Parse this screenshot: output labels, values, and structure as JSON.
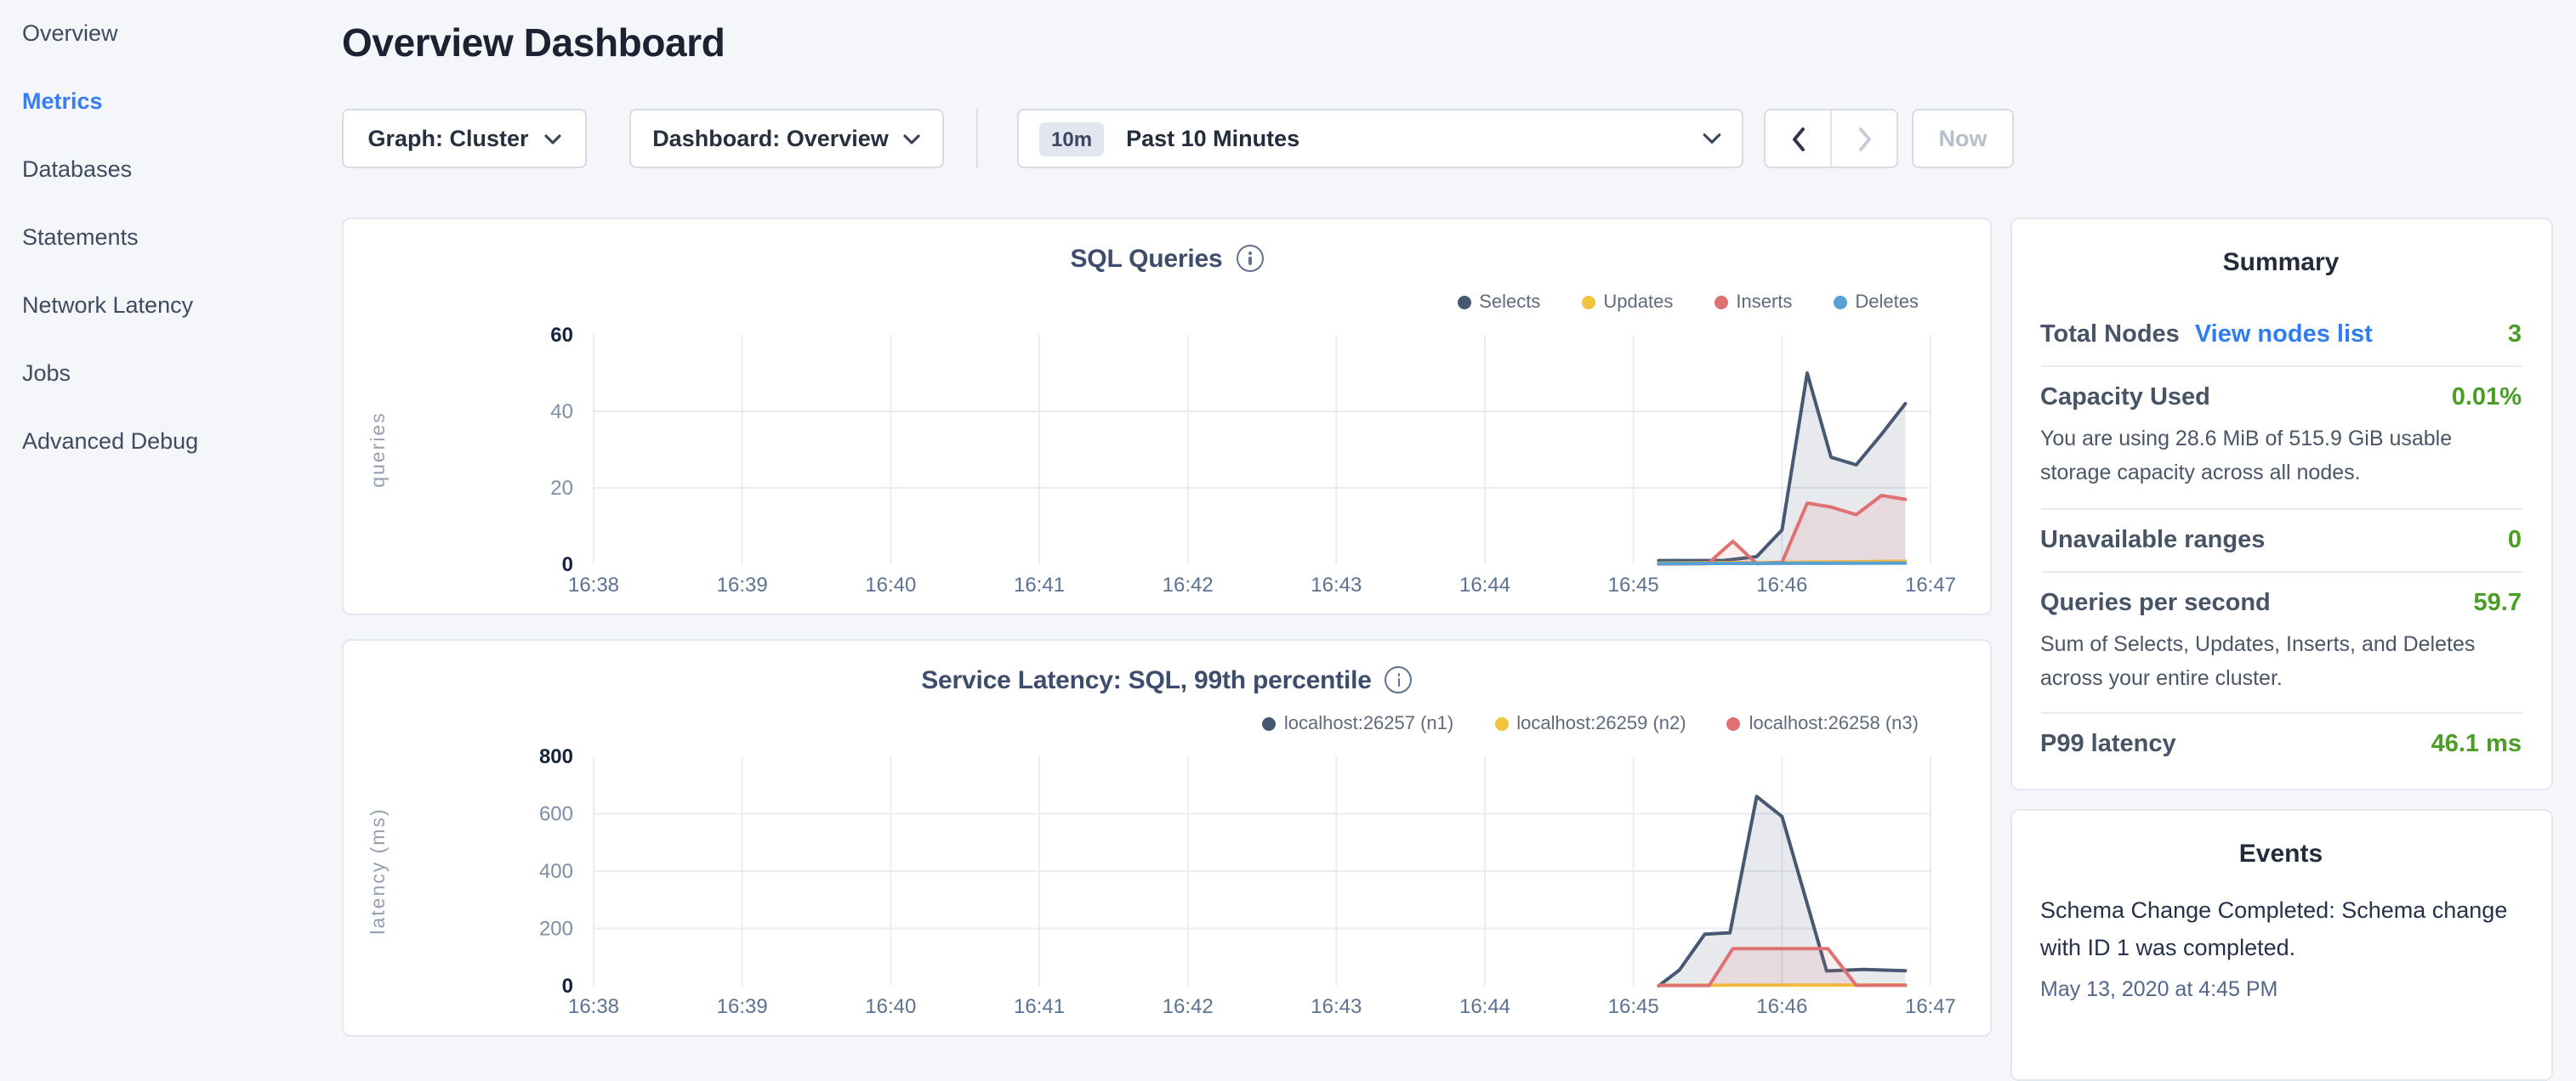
{
  "sidebar": {
    "items": [
      {
        "label": "Overview",
        "active": false
      },
      {
        "label": "Metrics",
        "active": true
      },
      {
        "label": "Databases",
        "active": false
      },
      {
        "label": "Statements",
        "active": false
      },
      {
        "label": "Network Latency",
        "active": false
      },
      {
        "label": "Jobs",
        "active": false
      },
      {
        "label": "Advanced Debug",
        "active": false
      }
    ]
  },
  "header": {
    "title": "Overview Dashboard"
  },
  "controls": {
    "graph_dropdown": {
      "label": "Graph: Cluster"
    },
    "dashboard_dropdown": {
      "label": "Dashboard: Overview"
    },
    "time_picker": {
      "badge": "10m",
      "label": "Past 10 Minutes"
    },
    "now_button": "Now"
  },
  "colors": {
    "accent_blue": "#377df6",
    "link_blue": "#2f7df2",
    "value_green": "#4a9e26",
    "series_navy": "#475872",
    "series_yellow": "#f2c33c",
    "series_red": "#e07172",
    "series_blue": "#57a0d4"
  },
  "chart_data": [
    {
      "type": "area",
      "title": "SQL Queries",
      "ylabel": "queries",
      "xlabel": "",
      "x_tick_labels": [
        "16:38",
        "16:39",
        "16:40",
        "16:41",
        "16:42",
        "16:43",
        "16:44",
        "16:45",
        "16:46",
        "16:47"
      ],
      "x_range_minutes": [
        0,
        9
      ],
      "ylim": [
        0,
        60
      ],
      "y_ticks": [
        0,
        20,
        40,
        60
      ],
      "grid": true,
      "legend_position": "top-right",
      "series": [
        {
          "name": "Selects",
          "color": "#475872",
          "fill_opacity": 0.13,
          "points": [
            [
              7.17,
              1
            ],
            [
              7.6,
              1
            ],
            [
              7.83,
              2
            ],
            [
              8.0,
              9
            ],
            [
              8.17,
              50
            ],
            [
              8.33,
              28
            ],
            [
              8.5,
              26
            ],
            [
              8.67,
              34
            ],
            [
              8.83,
              42
            ]
          ]
        },
        {
          "name": "Updates",
          "color": "#f2c33c",
          "fill_opacity": 0.1,
          "points": [
            [
              7.17,
              0.3
            ],
            [
              8.0,
              0.5
            ],
            [
              8.83,
              0.8
            ]
          ]
        },
        {
          "name": "Inserts",
          "color": "#e07172",
          "fill_opacity": 0.12,
          "points": [
            [
              7.17,
              0.1
            ],
            [
              7.5,
              0.2
            ],
            [
              7.67,
              6
            ],
            [
              7.83,
              0.2
            ],
            [
              8.0,
              0.5
            ],
            [
              8.17,
              16
            ],
            [
              8.33,
              15
            ],
            [
              8.5,
              13
            ],
            [
              8.67,
              18
            ],
            [
              8.83,
              17
            ]
          ]
        },
        {
          "name": "Deletes",
          "color": "#57a0d4",
          "fill_opacity": 0,
          "points": [
            [
              7.17,
              0.2
            ],
            [
              8.83,
              0.3
            ]
          ]
        }
      ]
    },
    {
      "type": "area",
      "title": "Service Latency: SQL, 99th percentile",
      "ylabel": "latency (ms)",
      "xlabel": "",
      "x_tick_labels": [
        "16:38",
        "16:39",
        "16:40",
        "16:41",
        "16:42",
        "16:43",
        "16:44",
        "16:45",
        "16:46",
        "16:47"
      ],
      "x_range_minutes": [
        0,
        9
      ],
      "ylim": [
        0,
        800
      ],
      "y_ticks": [
        0,
        200,
        400,
        600,
        800
      ],
      "grid": true,
      "legend_position": "top-right",
      "series": [
        {
          "name": "localhost:26257 (n1)",
          "color": "#475872",
          "fill_opacity": 0.13,
          "points": [
            [
              7.17,
              0
            ],
            [
              7.31,
              55
            ],
            [
              7.48,
              180
            ],
            [
              7.65,
              185
            ],
            [
              7.83,
              660
            ],
            [
              8.0,
              590
            ],
            [
              8.3,
              52
            ],
            [
              8.55,
              57
            ],
            [
              8.83,
              53
            ]
          ]
        },
        {
          "name": "localhost:26259 (n2)",
          "color": "#f2c33c",
          "fill_opacity": 0.1,
          "points": [
            [
              7.17,
              2
            ],
            [
              8.83,
              3
            ]
          ]
        },
        {
          "name": "localhost:26258 (n3)",
          "color": "#e07172",
          "fill_opacity": 0.12,
          "points": [
            [
              7.17,
              1
            ],
            [
              7.51,
              1
            ],
            [
              7.67,
              130
            ],
            [
              8.31,
              130
            ],
            [
              8.5,
              2
            ],
            [
              8.83,
              2
            ]
          ]
        }
      ]
    }
  ],
  "summary": {
    "title": "Summary",
    "rows": [
      {
        "label": "Total Nodes",
        "link": "View nodes list",
        "value": "3",
        "description": ""
      },
      {
        "label": "Capacity Used",
        "value": "0.01%",
        "description": "You are using 28.6 MiB of 515.9 GiB usable storage capacity across all nodes."
      },
      {
        "label": "Unavailable ranges",
        "value": "0",
        "description": ""
      },
      {
        "label": "Queries per second",
        "value": "59.7",
        "description": "Sum of Selects, Updates, Inserts, and Deletes across your entire cluster."
      },
      {
        "label": "P99 latency",
        "value": "46.1 ms",
        "description": ""
      }
    ]
  },
  "events": {
    "title": "Events",
    "items": [
      {
        "text": "Schema Change Completed: Schema change with ID 1 was completed.",
        "timestamp": "May 13, 2020 at 4:45 PM"
      }
    ]
  }
}
